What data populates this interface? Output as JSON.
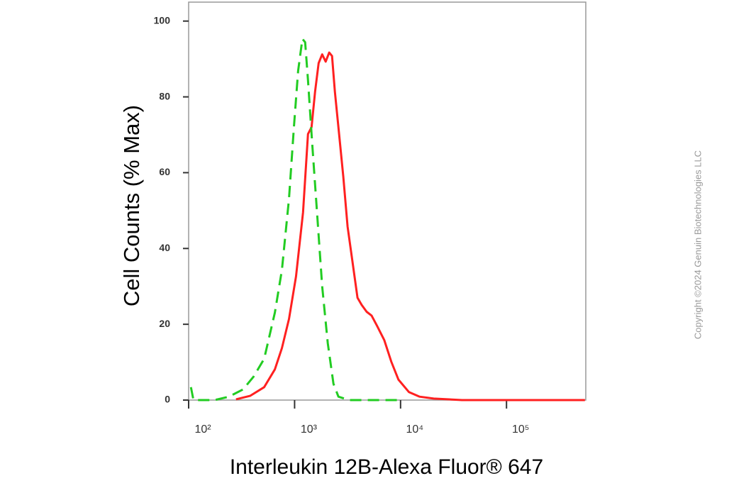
{
  "chart_data": {
    "type": "line",
    "xlabel": "Interleukin 12B-Alexa Fluor® 647",
    "ylabel": "Cell Counts (% Max)",
    "watermark": "Copyright ©2024 Genuin Biotechnologies LLC",
    "xscale": "log",
    "xlim": [
      100,
      560000
    ],
    "ylim": [
      0,
      105
    ],
    "xticks": [
      {
        "value": 100,
        "label": "10²"
      },
      {
        "value": 1000,
        "label": "10³"
      },
      {
        "value": 10000,
        "label": "10⁴"
      },
      {
        "value": 100000,
        "label": "10⁵"
      }
    ],
    "yticks": [
      0,
      20,
      40,
      60,
      80,
      100
    ],
    "series": [
      {
        "color": "#ff2020",
        "dashed": false,
        "x": [
          280,
          380,
          516,
          651,
          759,
          885,
          1031,
          1202,
          1339,
          1445,
          1561,
          1686,
          1820,
          1965,
          2122,
          2256,
          2399,
          2590,
          2884,
          3162,
          3521,
          3922,
          4300,
          4786,
          5330,
          6026,
          7025,
          8185,
          9550,
          12020,
          15140,
          20560,
          38020,
          550000
        ],
        "values": [
          0.2,
          1.1,
          3.4,
          8.1,
          13.7,
          21.4,
          32.6,
          49.5,
          70.2,
          72.0,
          81.4,
          88.9,
          91.2,
          89.3,
          91.7,
          90.8,
          81.4,
          72.0,
          58.9,
          45.8,
          36.4,
          27.0,
          25.1,
          23.3,
          22.3,
          19.5,
          15.8,
          10.1,
          5.4,
          2.1,
          0.9,
          0.4,
          0,
          0
        ]
      },
      {
        "color": "#22cc22",
        "dashed": true,
        "x": [
          105,
          111,
          176,
          240,
          326,
          410,
          516,
          651,
          759,
          885,
          985,
          1080,
          1184,
          1259,
          1339,
          1468,
          1634,
          1820,
          2056,
          2326,
          2590,
          3260,
          9550
        ],
        "values": [
          3.4,
          0,
          0,
          0.9,
          2.8,
          6.2,
          10.9,
          23.1,
          34.3,
          53.1,
          71.9,
          86.9,
          95.3,
          94.4,
          84.4,
          67.5,
          48.8,
          30.0,
          15.0,
          4.3,
          0.9,
          0,
          0
        ]
      }
    ]
  }
}
